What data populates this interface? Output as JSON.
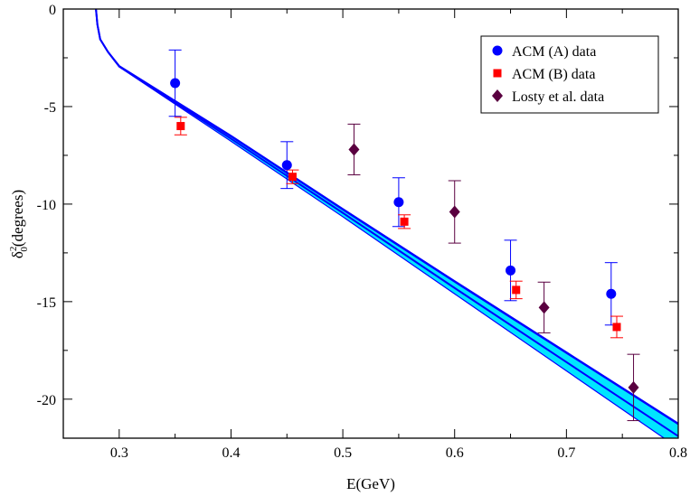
{
  "chart_data": {
    "type": "scatter",
    "title": "",
    "xlabel": "E(GeV)",
    "ylabel": {
      "base": "δ",
      "sup": "2",
      "sub": "0",
      "rest": "(degrees)"
    },
    "xlim": [
      0.25,
      0.8
    ],
    "ylim": [
      -22,
      0
    ],
    "xticks": [
      0.3,
      0.4,
      0.5,
      0.6,
      0.7,
      0.8
    ],
    "xtick_labels": [
      "0.3",
      "0.4",
      "0.5",
      "0.6",
      "0.7",
      "0.8"
    ],
    "yticks": [
      0,
      -5,
      -10,
      -15,
      -20
    ],
    "ytick_labels": [
      "0",
      "-5",
      "-10",
      "-15",
      "-20"
    ],
    "xminor_step": 0.05,
    "yminor_step": 2.5,
    "grid": false,
    "legend_position": "top-right",
    "band": {
      "color_fill": "#00e5ff",
      "color_line": "#0000ff",
      "x": [
        0.2792,
        0.2805,
        0.283,
        0.29,
        0.3,
        0.4,
        0.5,
        0.6,
        0.7,
        0.8
      ],
      "center": [
        0,
        -0.8,
        -1.55,
        -2.2,
        -2.95,
        -6.65,
        -10.45,
        -14.3,
        -18.1,
        -21.9
      ],
      "upper": [
        0,
        -0.8,
        -1.55,
        -2.2,
        -2.93,
        -6.55,
        -10.3,
        -14.0,
        -17.65,
        -21.3
      ],
      "lower": [
        0,
        -0.8,
        -1.55,
        -2.2,
        -2.97,
        -6.78,
        -10.65,
        -14.6,
        -18.55,
        -22.5
      ],
      "center_line2": [
        0,
        -0.8,
        -1.55,
        -2.2,
        -2.92,
        -6.5,
        -10.25,
        -13.95,
        -17.6,
        -21.25
      ]
    },
    "series": [
      {
        "name": "ACM (A) data",
        "marker": "circle",
        "color": "#0000ff",
        "x": [
          0.35,
          0.45,
          0.55,
          0.65,
          0.74
        ],
        "y": [
          -3.8,
          -8.0,
          -9.9,
          -13.4,
          -14.6
        ],
        "err": [
          1.7,
          1.2,
          1.25,
          1.55,
          1.6
        ]
      },
      {
        "name": "ACM (B) data",
        "marker": "square",
        "color": "#ff0000",
        "x": [
          0.355,
          0.455,
          0.555,
          0.655,
          0.745
        ],
        "y": [
          -6.0,
          -8.6,
          -10.9,
          -14.4,
          -16.3
        ],
        "err": [
          0.45,
          0.35,
          0.35,
          0.45,
          0.55
        ]
      },
      {
        "name": "Losty et al. data",
        "marker": "diamond",
        "color": "#5a0040",
        "x": [
          0.51,
          0.6,
          0.68,
          0.76
        ],
        "y": [
          -7.2,
          -10.4,
          -15.3,
          -19.4
        ],
        "err": [
          1.3,
          1.6,
          1.3,
          1.7
        ]
      }
    ]
  }
}
